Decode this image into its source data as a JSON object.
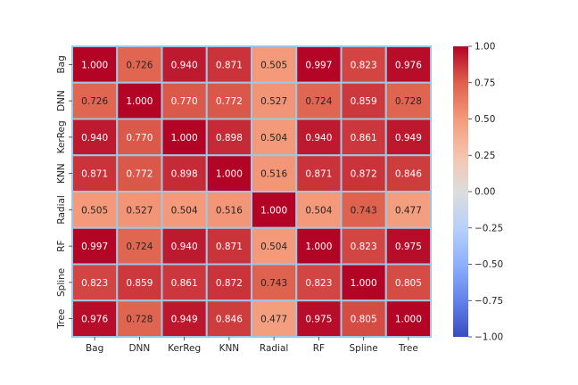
{
  "chart_data": {
    "type": "heatmap",
    "title": "",
    "xlabel": "",
    "ylabel": "",
    "x_labels": [
      "Bag",
      "DNN",
      "KerReg",
      "KNN",
      "Radial",
      "RF",
      "Spline",
      "Tree"
    ],
    "y_labels": [
      "Bag",
      "DNN",
      "KerReg",
      "KNN",
      "Radial",
      "RF",
      "Spline",
      "Tree"
    ],
    "values": [
      [
        1.0,
        0.726,
        0.94,
        0.871,
        0.505,
        0.997,
        0.823,
        0.976
      ],
      [
        0.726,
        1.0,
        0.77,
        0.772,
        0.527,
        0.724,
        0.859,
        0.728
      ],
      [
        0.94,
        0.77,
        1.0,
        0.898,
        0.504,
        0.94,
        0.861,
        0.949
      ],
      [
        0.871,
        0.772,
        0.898,
        1.0,
        0.516,
        0.871,
        0.872,
        0.846
      ],
      [
        0.505,
        0.527,
        0.504,
        0.516,
        1.0,
        0.504,
        0.743,
        0.477
      ],
      [
        0.997,
        0.724,
        0.94,
        0.871,
        0.504,
        1.0,
        0.823,
        0.975
      ],
      [
        0.823,
        0.859,
        0.861,
        0.872,
        0.743,
        0.823,
        1.0,
        0.805
      ],
      [
        0.976,
        0.728,
        0.949,
        0.846,
        0.477,
        0.975,
        0.805,
        1.0
      ]
    ],
    "annotation_format": "0.000",
    "colormap": "coolwarm",
    "vmin": -1.0,
    "vmax": 1.0,
    "cell_border_color": "#9ec7e6",
    "colorbar": {
      "position": "right",
      "ticks": [
        1.0,
        0.75,
        0.5,
        0.25,
        0.0,
        -0.25,
        -0.5,
        -0.75,
        -1.0
      ],
      "tick_labels": [
        "1.00",
        "0.75",
        "0.50",
        "0.25",
        "0.00",
        "−0.25",
        "−0.50",
        "−0.75",
        "−1.00"
      ]
    }
  }
}
